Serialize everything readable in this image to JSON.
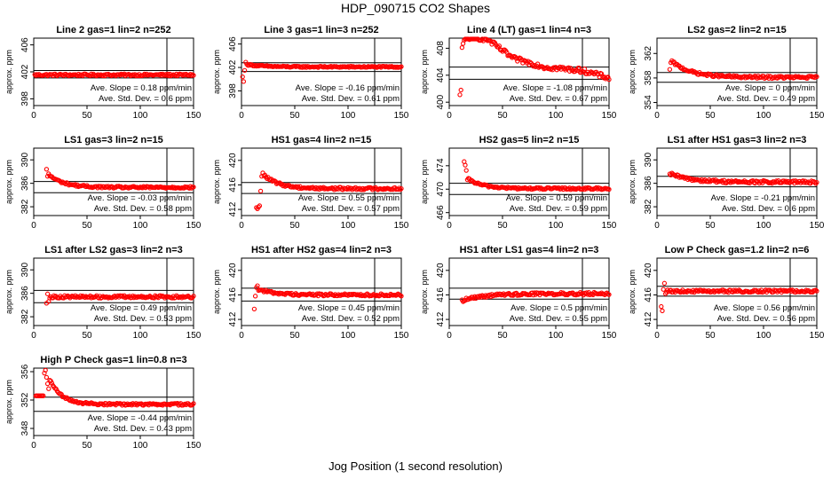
{
  "page": {
    "title": "HDP_090715  CO2 Shapes",
    "xlabel": "Jog Position (1 second resolution)"
  },
  "chart_data": [
    {
      "type": "scatter",
      "title": "Line 2 gas=1 lin=2 n=252",
      "ylabel": "approx. ppm",
      "xlim": [
        0,
        150
      ],
      "ylim": [
        397,
        407
      ],
      "yticks": [
        398,
        402,
        406
      ],
      "xticks": [
        0,
        50,
        100,
        150
      ],
      "hlines": [
        401.1,
        402.2
      ],
      "vline": 125,
      "slope": "0.18",
      "sd": "0.6",
      "profile": {
        "start": 1,
        "base": 401.55,
        "bump": 0,
        "tau": 10,
        "jitter": 0.15,
        "first": []
      }
    },
    {
      "type": "scatter",
      "title": "Line 3 gas=1 lin=3 n=252",
      "ylabel": "approx. ppm",
      "xlim": [
        0,
        150
      ],
      "ylim": [
        395.5,
        407
      ],
      "yticks": [
        398,
        402,
        406
      ],
      "xticks": [
        0,
        50,
        100,
        150
      ],
      "hlines": [
        401.3,
        402.8
      ],
      "vline": 125,
      "slope": "-0.16",
      "sd": "0.61",
      "profile": {
        "start": 1,
        "base": 402.1,
        "bump": 0.4,
        "tau": 15,
        "jitter": 0.12,
        "first": [
          400.4,
          399.6,
          401.5,
          402.9
        ]
      }
    },
    {
      "type": "scatter",
      "title": "Line 4 (LT) gas=1 lin=4 n=3",
      "ylabel": "approx. ppm",
      "xlim": [
        0,
        150
      ],
      "ylim": [
        399.5,
        409.5
      ],
      "yticks": [
        400,
        404,
        408
      ],
      "xticks": [
        0,
        50,
        100,
        150
      ],
      "hlines": [
        403.4,
        405.2
      ],
      "vline": 125,
      "slope": "-1.08",
      "sd": "0.67",
      "profile": {
        "start": 10,
        "base": 0,
        "bump": 0,
        "tau": 0,
        "jitter": 0.35,
        "first": [
          401.1,
          401.8,
          408.1,
          408.7,
          409.2
        ],
        "trend": [
          [
            15,
            409.6
          ],
          [
            35,
            409.4
          ],
          [
            60,
            406.5
          ],
          [
            90,
            405.2
          ],
          [
            125,
            404.7
          ],
          [
            150,
            403.6
          ]
        ]
      }
    },
    {
      "type": "scatter",
      "title": "LS2 gas=2 lin=2 n=15",
      "ylabel": "approx. ppm",
      "xlim": [
        0,
        150
      ],
      "ylim": [
        353.5,
        364.5
      ],
      "yticks": [
        354,
        358,
        362
      ],
      "xticks": [
        0,
        50,
        100,
        150
      ],
      "hlines": [
        357.3,
        358.9
      ],
      "vline": 125,
      "slope": "0",
      "sd": "0.49",
      "profile": {
        "start": 12,
        "base": 358.1,
        "bump": 2.6,
        "tau": 18,
        "jitter": 0.2,
        "first": [
          359.4,
          360.5
        ]
      }
    },
    {
      "type": "scatter",
      "title": "LS1 gas=3 lin=2 n=15",
      "ylabel": "approx. ppm",
      "xlim": [
        0,
        150
      ],
      "ylim": [
        380.5,
        392
      ],
      "yticks": [
        382,
        386,
        390
      ],
      "xticks": [
        0,
        50,
        100,
        150
      ],
      "hlines": [
        384.4,
        386.3
      ],
      "vline": 125,
      "slope": "-0.03",
      "sd": "0.58",
      "profile": {
        "start": 12,
        "base": 385.3,
        "bump": 2.2,
        "tau": 14,
        "jitter": 0.18,
        "first": [
          388.4,
          387.2
        ]
      }
    },
    {
      "type": "scatter",
      "title": "HS1 gas=4 lin=2 n=15",
      "ylabel": "approx. ppm",
      "xlim": [
        0,
        150
      ],
      "ylim": [
        411,
        422
      ],
      "yticks": [
        412,
        416,
        420
      ],
      "xticks": [
        0,
        50,
        100,
        150
      ],
      "hlines": [
        414.6,
        416.4
      ],
      "vline": 125,
      "slope": "0.55",
      "sd": "0.57",
      "profile": {
        "start": 14,
        "base": 415.4,
        "bump": 2.4,
        "tau": 14,
        "jitter": 0.2,
        "first": [
          412.3,
          412.1,
          412.4,
          412.6,
          415.0,
          417.4
        ]
      }
    },
    {
      "type": "scatter",
      "title": "HS2 gas=5 lin=2 n=15",
      "ylabel": "approx. ppm",
      "xlim": [
        0,
        150
      ],
      "ylim": [
        465.5,
        477
      ],
      "yticks": [
        466,
        470,
        474
      ],
      "xticks": [
        0,
        50,
        100,
        150
      ],
      "hlines": [
        469.1,
        471.0
      ],
      "vline": 125,
      "slope": "0.59",
      "sd": "0.59",
      "profile": {
        "start": 14,
        "base": 470.1,
        "bump": 1.6,
        "tau": 14,
        "jitter": 0.17,
        "first": [
          474.7,
          474.1,
          473.2,
          471.6
        ]
      }
    },
    {
      "type": "scatter",
      "title": "LS1 after HS1 gas=3 lin=2 n=3",
      "ylabel": "approx. ppm",
      "xlim": [
        0,
        150
      ],
      "ylim": [
        380.5,
        392
      ],
      "yticks": [
        382,
        386,
        390
      ],
      "xticks": [
        0,
        50,
        100,
        150
      ],
      "hlines": [
        385.4,
        387.2
      ],
      "vline": 125,
      "slope": "-0.21",
      "sd": "0.6",
      "profile": {
        "start": 12,
        "base": 386.2,
        "bump": 1.3,
        "tau": 20,
        "jitter": 0.25,
        "first": [
          387.6,
          387.4
        ]
      }
    },
    {
      "type": "scatter",
      "title": "LS1 after LS2 gas=3 lin=2 n=3",
      "ylabel": "approx. ppm",
      "xlim": [
        0,
        150
      ],
      "ylim": [
        380.5,
        392
      ],
      "yticks": [
        382,
        386,
        390
      ],
      "xticks": [
        0,
        50,
        100,
        150
      ],
      "hlines": [
        384.4,
        386.5
      ],
      "vline": 125,
      "slope": "0.49",
      "sd": "0.53",
      "profile": {
        "start": 12,
        "base": 385.4,
        "bump": 0,
        "tau": 10,
        "jitter": 0.22,
        "first": [
          384.3,
          385.9,
          384.6
        ]
      }
    },
    {
      "type": "scatter",
      "title": "HS1 after HS2 gas=4 lin=2 n=3",
      "ylabel": "approx. ppm",
      "xlim": [
        0,
        150
      ],
      "ylim": [
        411,
        422
      ],
      "yticks": [
        412,
        416,
        420
      ],
      "xticks": [
        0,
        50,
        100,
        150
      ],
      "hlines": [
        415.0,
        417.1
      ],
      "vline": 125,
      "slope": "0.45",
      "sd": "0.52",
      "profile": {
        "start": 12,
        "base": 416.0,
        "bump": 0.9,
        "tau": 16,
        "jitter": 0.2,
        "first": [
          413.7,
          415.8,
          417.2,
          417.5
        ]
      }
    },
    {
      "type": "scatter",
      "title": "HS1 after LS1 gas=4 lin=2 n=3",
      "ylabel": "approx. ppm",
      "xlim": [
        0,
        150
      ],
      "ylim": [
        411,
        422
      ],
      "yticks": [
        412,
        416,
        420
      ],
      "xticks": [
        0,
        50,
        100,
        150
      ],
      "hlines": [
        415.3,
        417.1
      ],
      "vline": 125,
      "slope": "0.5",
      "sd": "0.55",
      "profile": {
        "start": 12,
        "base": 416.2,
        "bump": -1.0,
        "tau": 20,
        "jitter": 0.22,
        "first": [
          415.2,
          414.9
        ]
      }
    },
    {
      "type": "scatter",
      "title": "Low P Check gas=1.2 lin=2 n=6",
      "ylabel": "approx. ppm",
      "xlim": [
        0,
        150
      ],
      "ylim": [
        411,
        422
      ],
      "yticks": [
        412,
        416,
        420
      ],
      "xticks": [
        0,
        50,
        100,
        150
      ],
      "hlines": [
        415.8,
        417.4
      ],
      "vline": 125,
      "slope": "0.56",
      "sd": "0.56",
      "profile": {
        "start": 4,
        "base": 416.6,
        "bump": 0,
        "tau": 10,
        "jitter": 0.2,
        "first": [
          414.1,
          413.4,
          416.9,
          417.9,
          416.2
        ]
      }
    },
    {
      "type": "scatter",
      "title": "High P Check gas=1 lin=0.8 n=3",
      "ylabel": "approx. ppm",
      "xlim": [
        0,
        150
      ],
      "ylim": [
        347,
        356.5
      ],
      "yticks": [
        348,
        352,
        356
      ],
      "xticks": [
        0,
        50,
        100,
        150
      ],
      "hlines": [
        350.4,
        352.4
      ],
      "vline": 125,
      "slope": "-0.44",
      "sd": "0.43",
      "profile": {
        "start": 2,
        "base": 351.4,
        "bump": 3.5,
        "tau": 11,
        "jitter": 0.15,
        "first": [
          352.6,
          352.6,
          352.6,
          352.6,
          352.6,
          352.6,
          352.6,
          352.6,
          355.8,
          356.2,
          355.2,
          354.3,
          353.6
        ]
      }
    }
  ],
  "stats_labels": {
    "slope_prefix": "Ave. Slope = ",
    "slope_unit": " ppm/min",
    "sd_prefix": "Ave. Std. Dev. = ",
    "sd_unit": " ppm"
  },
  "colors": {
    "points": "#ff0000",
    "lines": "#000000"
  }
}
